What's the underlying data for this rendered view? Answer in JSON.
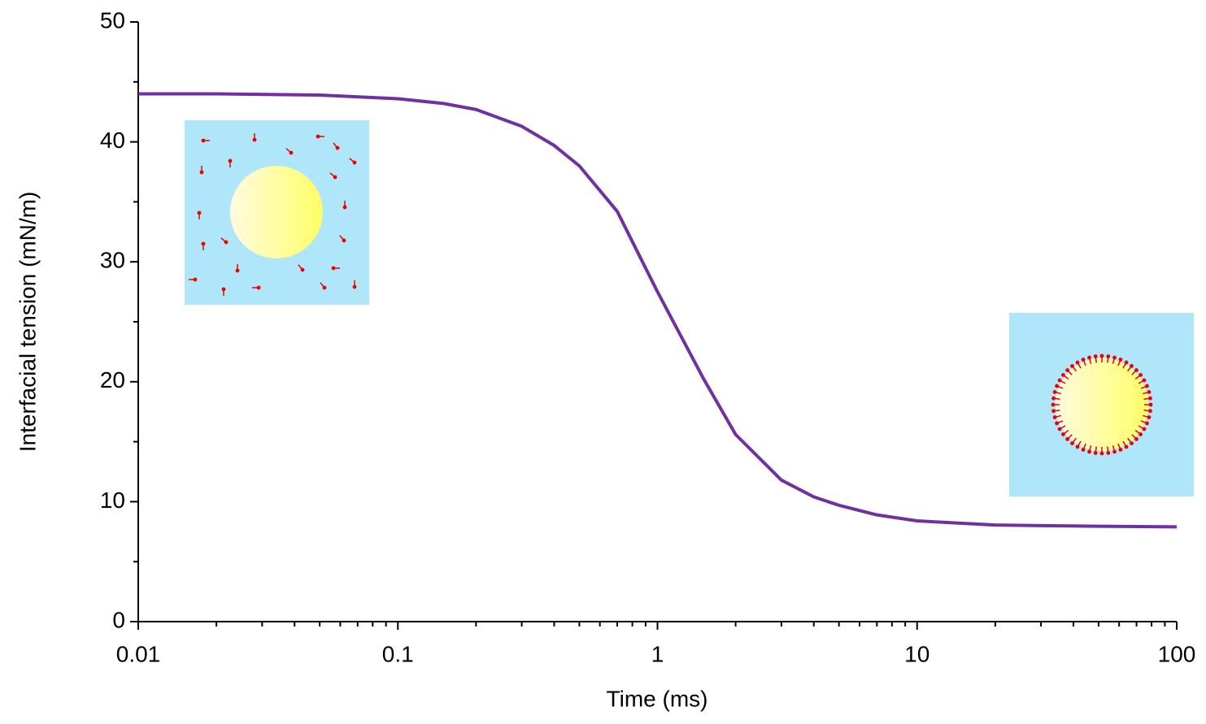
{
  "chart_data": {
    "type": "line",
    "x_label": "Time (ms)",
    "y_label": "Interfacial tension (mN/m)",
    "log_x": true,
    "xlim": [
      0.01,
      100
    ],
    "xticks": [
      0.01,
      0.1,
      1,
      10,
      100
    ],
    "xminorticks": [
      0.02,
      0.03,
      0.04,
      0.05,
      0.06,
      0.07,
      0.08,
      0.09,
      0.2,
      0.3,
      0.4,
      0.5,
      0.6,
      0.7,
      0.8,
      0.9,
      2,
      3,
      4,
      5,
      6,
      7,
      8,
      9,
      20,
      30,
      40,
      50,
      60,
      70,
      80,
      90
    ],
    "ylim": [
      0,
      50
    ],
    "yticks": [
      0,
      10,
      20,
      30,
      40,
      50
    ],
    "yminorticks": [
      5,
      15,
      25,
      35,
      45
    ],
    "x": [
      0.01,
      0.02,
      0.05,
      0.1,
      0.15,
      0.2,
      0.3,
      0.4,
      0.5,
      0.7,
      1,
      1.5,
      2,
      3,
      4,
      5,
      7,
      10,
      20,
      50,
      100
    ],
    "series": [
      {
        "color": "#7030a0",
        "values": [
          44,
          44,
          43.9,
          43.6,
          43.2,
          42.7,
          41.3,
          39.7,
          38,
          34.2,
          27.5,
          20.3,
          15.6,
          11.8,
          10.4,
          9.7,
          8.9,
          8.4,
          8.05,
          7.95,
          7.9
        ]
      }
    ]
  }
}
